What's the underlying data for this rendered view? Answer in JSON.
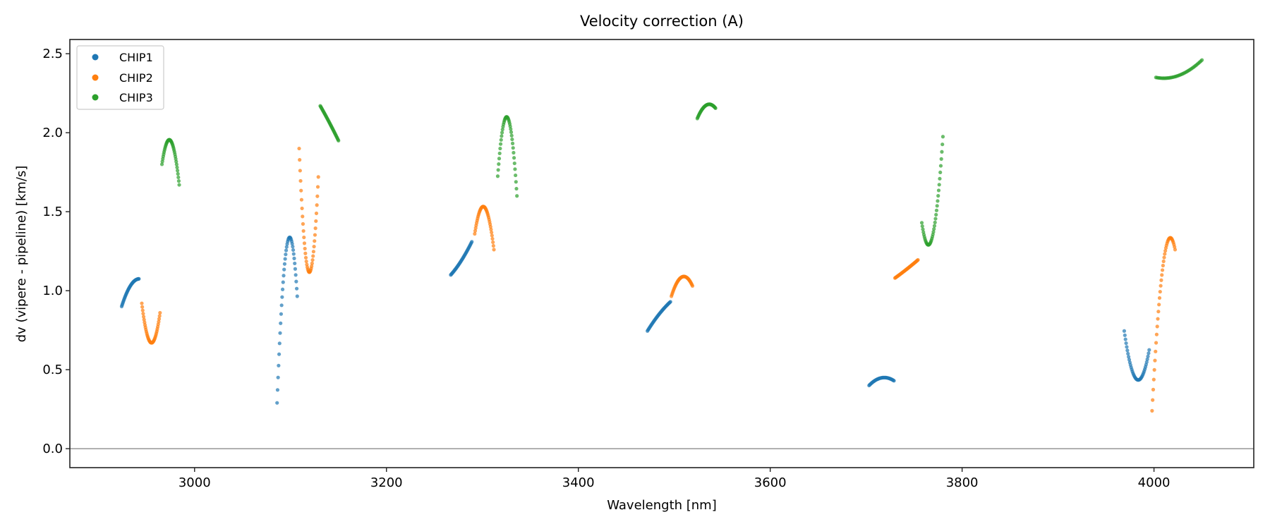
{
  "chart_data": {
    "type": "scatter",
    "title": "Velocity correction (A)",
    "xlabel": "Wavelength [nm]",
    "ylabel": "dv (vipere - pipeline) [km/s]",
    "xlim": [
      2870,
      4104
    ],
    "ylim": [
      -0.12,
      2.59
    ],
    "xticks": [
      3000,
      3200,
      3400,
      3600,
      3800,
      4000
    ],
    "xtick_labels": [
      "3000",
      "3200",
      "3400",
      "3600",
      "3800",
      "4000"
    ],
    "yticks": [
      0.0,
      0.5,
      1.0,
      1.5,
      2.0,
      2.5
    ],
    "ytick_labels": [
      "0.0",
      "0.5",
      "1.0",
      "1.5",
      "2.0",
      "2.5"
    ],
    "hline": 0.0,
    "grid": false,
    "legend_position": "top-left",
    "series": [
      {
        "name": "CHIP1",
        "color": "#1f77b4",
        "segments": [
          [
            [
              2924,
              0.9
            ],
            [
              2933,
              1.03
            ],
            [
              2942,
              1.075
            ]
          ],
          [
            [
              3086,
              0.29
            ],
            [
              3098,
              1.33
            ],
            [
              3107,
              0.965
            ]
          ],
          [
            [
              3267,
              1.1
            ],
            [
              3278,
              1.19
            ],
            [
              3289,
              1.31
            ]
          ],
          [
            [
              3472,
              0.745
            ],
            [
              3484,
              0.85
            ],
            [
              3496,
              0.93
            ]
          ],
          [
            [
              3703,
              0.4
            ],
            [
              3718,
              0.45
            ],
            [
              3729,
              0.43
            ]
          ],
          [
            [
              3969,
              0.745
            ],
            [
              3984,
              0.435
            ],
            [
              3995,
              0.625
            ]
          ]
        ]
      },
      {
        "name": "CHIP2",
        "color": "#ff7f0e",
        "segments": [
          [
            [
              2945,
              0.92
            ],
            [
              2955,
              0.67
            ],
            [
              2964,
              0.86
            ]
          ],
          [
            [
              3109,
              1.9
            ],
            [
              3119,
              1.12
            ],
            [
              3129,
              1.72
            ]
          ],
          [
            [
              3292,
              1.36
            ],
            [
              3302,
              1.53
            ],
            [
              3312,
              1.26
            ]
          ],
          [
            [
              3497,
              0.965
            ],
            [
              3510,
              1.09
            ],
            [
              3519,
              1.03
            ]
          ],
          [
            [
              3730,
              1.08
            ],
            [
              3742,
              1.135
            ],
            [
              3754,
              1.195
            ]
          ],
          [
            [
              3998,
              0.24
            ],
            [
              4017,
              1.335
            ],
            [
              4022,
              1.26
            ]
          ]
        ]
      },
      {
        "name": "CHIP3",
        "color": "#2ca02c",
        "segments": [
          [
            [
              2966,
              1.8
            ],
            [
              2974,
              1.955
            ],
            [
              2984,
              1.67
            ]
          ],
          [
            [
              3131,
              2.17
            ],
            [
              3140,
              2.07
            ],
            [
              3150,
              1.95
            ]
          ],
          [
            [
              3316,
              1.725
            ],
            [
              3325,
              2.1
            ],
            [
              3336,
              1.6
            ]
          ],
          [
            [
              3524,
              2.09
            ],
            [
              3536,
              2.18
            ],
            [
              3543,
              2.155
            ]
          ],
          [
            [
              3758,
              1.43
            ],
            [
              3765,
              1.29
            ],
            [
              3780,
              1.975
            ]
          ],
          [
            [
              4002,
              2.35
            ],
            [
              4010,
              2.345
            ],
            [
              4050,
              2.46
            ]
          ]
        ]
      }
    ]
  }
}
